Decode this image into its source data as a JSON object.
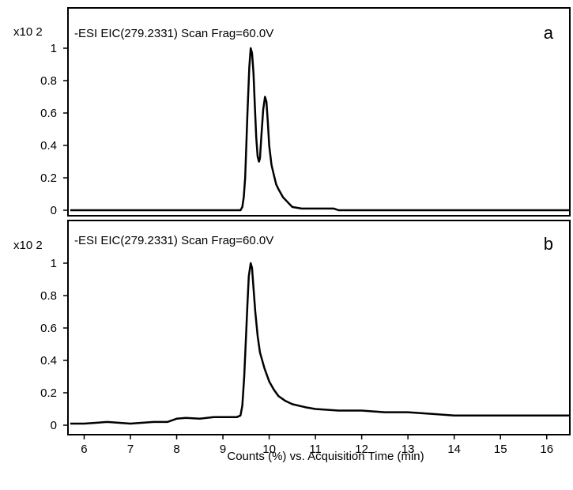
{
  "chart_data": [
    {
      "type": "line",
      "id": "a",
      "title": "-ESI EIC(279.2331) Scan Frag=60.0V",
      "panel_label": "a",
      "y_multiplier": "x10 2",
      "ylim": [
        0,
        1.05
      ],
      "yticks": [
        "0",
        "0.2",
        "0.4",
        "0.6",
        "0.8",
        "1"
      ],
      "color": "#000000",
      "series": [
        {
          "x": [
            5.7,
            6.5,
            7.5,
            8.5,
            9.0,
            9.38,
            9.42,
            9.45,
            9.48,
            9.5,
            9.53,
            9.57,
            9.6,
            9.63,
            9.66,
            9.69,
            9.72,
            9.75,
            9.78,
            9.8,
            9.83,
            9.87,
            9.91,
            9.94,
            9.97,
            10.0,
            10.05,
            10.1,
            10.15,
            10.2,
            10.3,
            10.4,
            10.5,
            10.7,
            11.0,
            11.3,
            11.4,
            11.5,
            12.5,
            14.0,
            16.5
          ],
          "y": [
            0.0,
            0.0,
            0.0,
            0.0,
            0.0,
            0.0,
            0.02,
            0.08,
            0.2,
            0.35,
            0.6,
            0.88,
            1.0,
            0.97,
            0.85,
            0.65,
            0.45,
            0.33,
            0.3,
            0.32,
            0.45,
            0.62,
            0.7,
            0.67,
            0.55,
            0.4,
            0.28,
            0.22,
            0.16,
            0.13,
            0.08,
            0.05,
            0.02,
            0.01,
            0.01,
            0.01,
            0.01,
            0.0,
            0.0,
            0.0,
            0.0
          ]
        }
      ]
    },
    {
      "type": "line",
      "id": "b",
      "title": "-ESI EIC(279.2331) Scan Frag=60.0V",
      "panel_label": "b",
      "y_multiplier": "x10 2",
      "ylim": [
        0,
        1.05
      ],
      "yticks": [
        "0",
        "0.2",
        "0.4",
        "0.6",
        "0.8",
        "1"
      ],
      "xlim": [
        5.65,
        16.5
      ],
      "xticks": [
        "6",
        "7",
        "8",
        "9",
        "10",
        "11",
        "12",
        "13",
        "14",
        "15",
        "16"
      ],
      "xlabel": "Counts (%) vs. Acquisition Time (min)",
      "color": "#000000",
      "series": [
        {
          "x": [
            5.7,
            6.0,
            6.5,
            7.0,
            7.5,
            7.8,
            8.0,
            8.2,
            8.5,
            8.8,
            9.0,
            9.3,
            9.38,
            9.42,
            9.46,
            9.5,
            9.53,
            9.56,
            9.6,
            9.63,
            9.66,
            9.7,
            9.75,
            9.8,
            9.9,
            10.0,
            10.1,
            10.2,
            10.35,
            10.5,
            10.8,
            11.0,
            11.5,
            12.0,
            12.5,
            13.0,
            13.5,
            14.0,
            14.5,
            15.0,
            15.5,
            16.0,
            16.5
          ],
          "y": [
            0.01,
            0.01,
            0.02,
            0.01,
            0.02,
            0.02,
            0.04,
            0.045,
            0.04,
            0.05,
            0.05,
            0.05,
            0.06,
            0.12,
            0.3,
            0.55,
            0.75,
            0.92,
            1.0,
            0.97,
            0.85,
            0.7,
            0.55,
            0.45,
            0.35,
            0.27,
            0.22,
            0.18,
            0.15,
            0.13,
            0.11,
            0.1,
            0.09,
            0.09,
            0.08,
            0.08,
            0.07,
            0.06,
            0.06,
            0.06,
            0.06,
            0.06,
            0.06
          ]
        }
      ]
    }
  ]
}
